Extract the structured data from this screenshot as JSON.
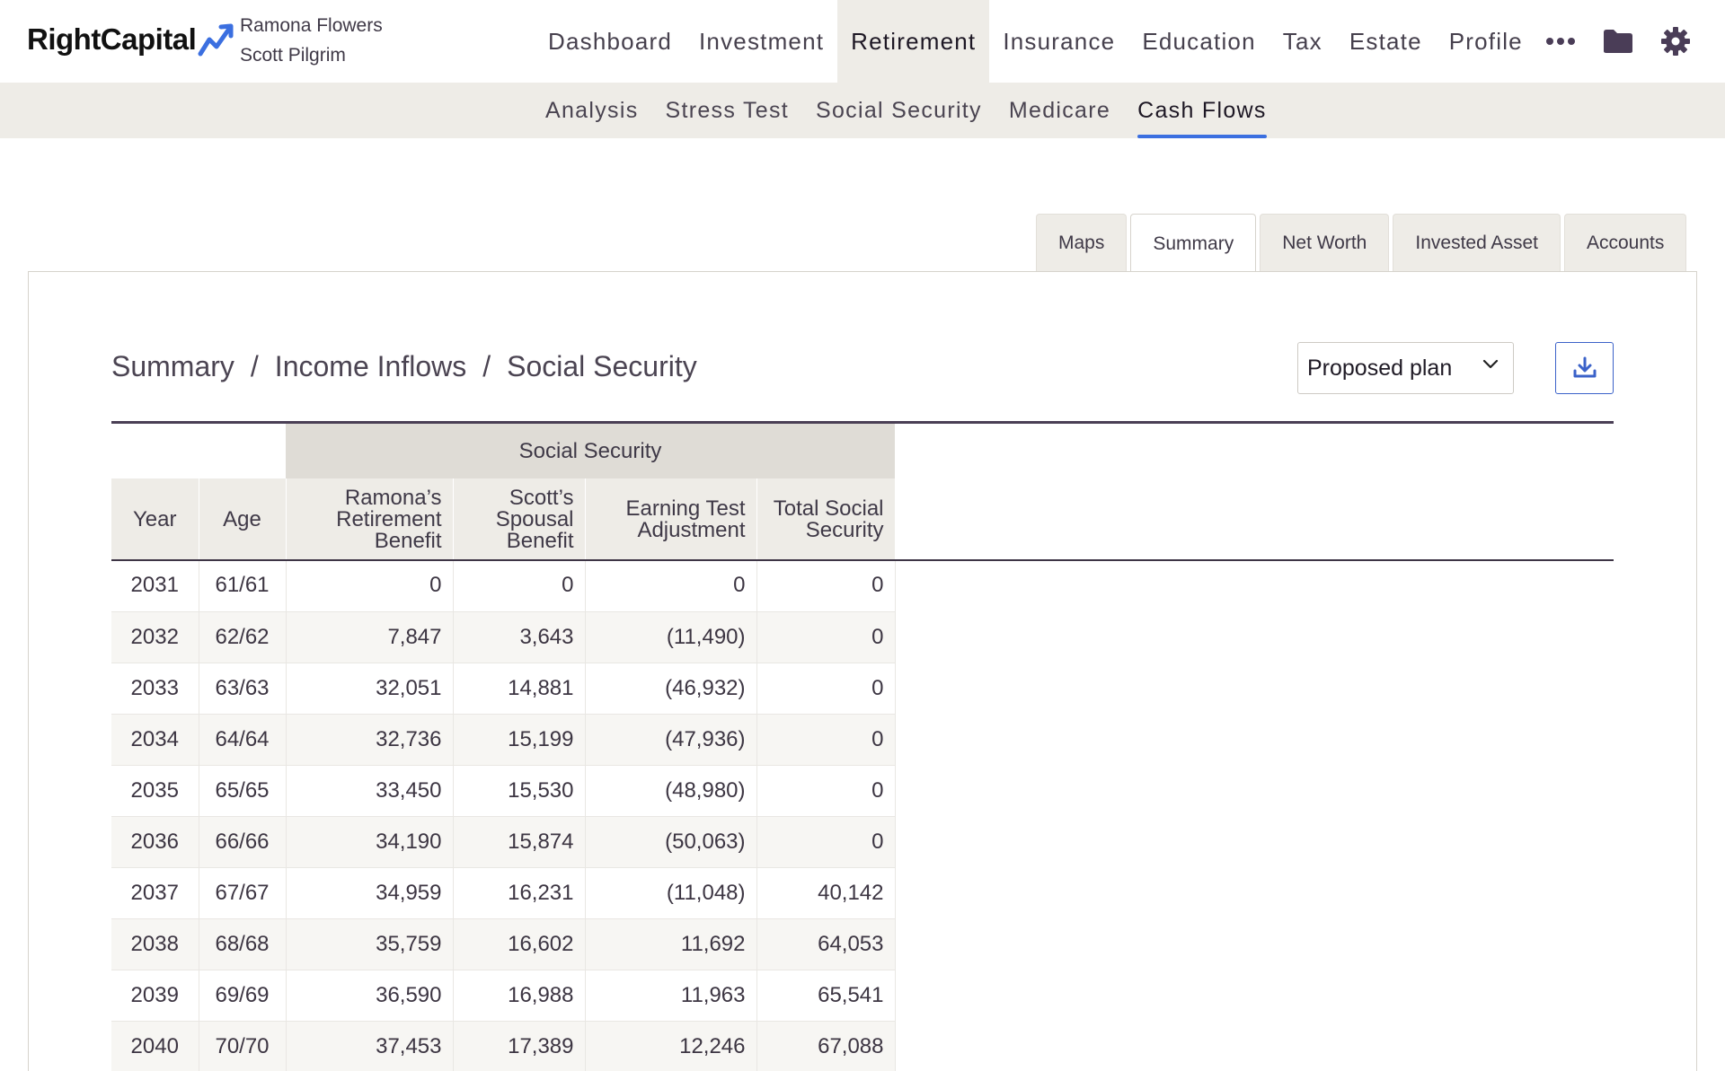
{
  "brand": {
    "name": "RightCapital",
    "accent": "#3b6fe0"
  },
  "clients": {
    "primary": "Ramona Flowers",
    "secondary": "Scott Pilgrim"
  },
  "main_nav": [
    {
      "label": "Dashboard",
      "active": false
    },
    {
      "label": "Investment",
      "active": false
    },
    {
      "label": "Retirement",
      "active": true
    },
    {
      "label": "Insurance",
      "active": false
    },
    {
      "label": "Education",
      "active": false
    },
    {
      "label": "Tax",
      "active": false
    },
    {
      "label": "Estate",
      "active": false
    },
    {
      "label": "Profile",
      "active": false
    }
  ],
  "nav_icons": [
    "more-icon",
    "folder-icon",
    "gear-icon"
  ],
  "sub_nav": [
    {
      "label": "Analysis",
      "active": false
    },
    {
      "label": "Stress Test",
      "active": false
    },
    {
      "label": "Social Security",
      "active": false
    },
    {
      "label": "Medicare",
      "active": false
    },
    {
      "label": "Cash Flows",
      "active": true
    }
  ],
  "view_tabs": [
    {
      "label": "Maps",
      "active": false
    },
    {
      "label": "Summary",
      "active": true
    },
    {
      "label": "Net Worth",
      "active": false
    },
    {
      "label": "Invested Asset",
      "active": false
    },
    {
      "label": "Accounts",
      "active": false
    }
  ],
  "breadcrumb": [
    "Summary",
    "Income Inflows",
    "Social Security"
  ],
  "breadcrumb_separator": "/",
  "plan_select": {
    "value": "Proposed plan"
  },
  "download_icon": "download-icon",
  "table": {
    "group_header": "Social Security",
    "columns": {
      "year": "Year",
      "age": "Age",
      "ramona": [
        "Ramona’s",
        "Retirement",
        "Benefit"
      ],
      "scott": [
        "Scott’s",
        "Spousal",
        "Benefit"
      ],
      "earning": [
        "Earning Test",
        "Adjustment"
      ],
      "total": [
        "Total Social",
        "Security"
      ]
    },
    "rows": [
      [
        "2031",
        "61/61",
        "0",
        "0",
        "0",
        "0"
      ],
      [
        "2032",
        "62/62",
        "7,847",
        "3,643",
        "(11,490)",
        "0"
      ],
      [
        "2033",
        "63/63",
        "32,051",
        "14,881",
        "(46,932)",
        "0"
      ],
      [
        "2034",
        "64/64",
        "32,736",
        "15,199",
        "(47,936)",
        "0"
      ],
      [
        "2035",
        "65/65",
        "33,450",
        "15,530",
        "(48,980)",
        "0"
      ],
      [
        "2036",
        "66/66",
        "34,190",
        "15,874",
        "(50,063)",
        "0"
      ],
      [
        "2037",
        "67/67",
        "34,959",
        "16,231",
        "(11,048)",
        "40,142"
      ],
      [
        "2038",
        "68/68",
        "35,759",
        "16,602",
        "11,692",
        "64,053"
      ],
      [
        "2039",
        "69/69",
        "36,590",
        "16,988",
        "11,963",
        "65,541"
      ],
      [
        "2040",
        "70/70",
        "37,453",
        "17,389",
        "12,246",
        "67,088"
      ]
    ]
  }
}
